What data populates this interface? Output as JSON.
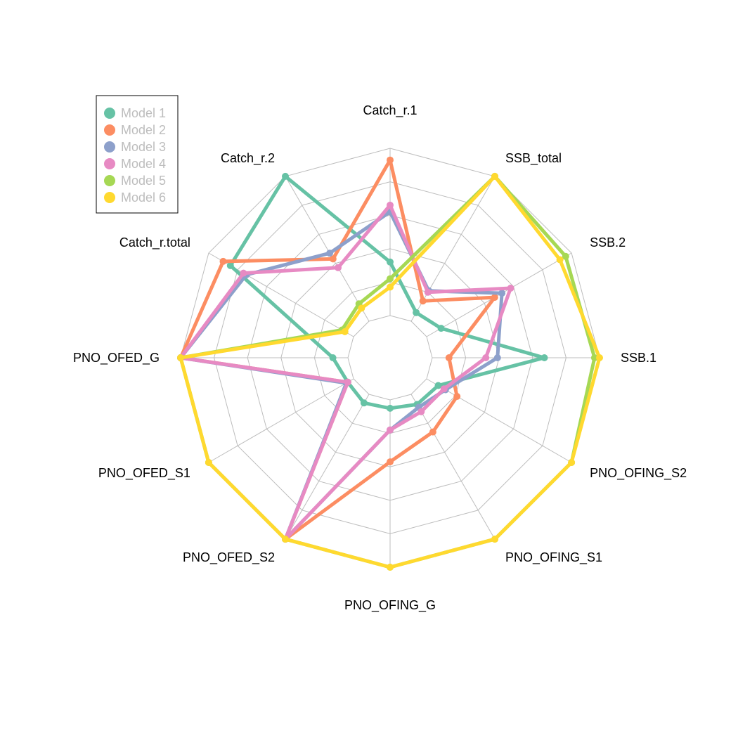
{
  "chart_data": {
    "type": "radar",
    "axes": [
      "Catch_r.1",
      "SSB_total",
      "SSB.2",
      "SSB.1",
      "PNO_OFING_S2",
      "PNO_OFING_S1",
      "PNO_OFING_G",
      "PNO_OFED_S2",
      "PNO_OFED_S1",
      "PNO_OFED_G",
      "Catch_r.total",
      "Catch_r.2"
    ],
    "range": [
      0,
      1
    ],
    "grid_levels": [
      0.2,
      0.4,
      0.6,
      0.8,
      1.0
    ],
    "grid": true,
    "legend_position": "top-left",
    "series": [
      {
        "name": "Model 1",
        "color": "#66c2a5",
        "values": [
          0.32,
          0.06,
          0.1,
          0.67,
          0.08,
          0.07,
          0.05,
          0.06,
          0.04,
          0.09,
          0.85,
          1.0
        ]
      },
      {
        "name": "Model 2",
        "color": "#fc8d62",
        "values": [
          0.93,
          0.14,
          0.47,
          0.1,
          0.21,
          0.26,
          0.37,
          1.0,
          0.04,
          1.0,
          0.9,
          0.43
        ]
      },
      {
        "name": "Model 3",
        "color": "#8da0cb",
        "values": [
          0.62,
          0.21,
          0.52,
          0.39,
          0.13,
          0.09,
          0.18,
          1.0,
          0.05,
          1.0,
          0.74,
          0.47
        ]
      },
      {
        "name": "Model 4",
        "color": "#e78ac3",
        "values": [
          0.66,
          0.2,
          0.58,
          0.32,
          0.12,
          0.12,
          0.18,
          1.0,
          0.04,
          1.0,
          0.76,
          0.37
        ]
      },
      {
        "name": "Model 5",
        "color": "#a6d854",
        "values": [
          0.22,
          1.0,
          0.96,
          0.97,
          1.0,
          1.0,
          1.0,
          1.0,
          1.0,
          1.0,
          0.08,
          0.12
        ]
      },
      {
        "name": "Model 6",
        "color": "#ffd92f",
        "values": [
          0.17,
          1.0,
          0.92,
          1.0,
          1.0,
          1.0,
          1.0,
          1.0,
          1.0,
          1.0,
          0.06,
          0.09
        ]
      }
    ]
  }
}
